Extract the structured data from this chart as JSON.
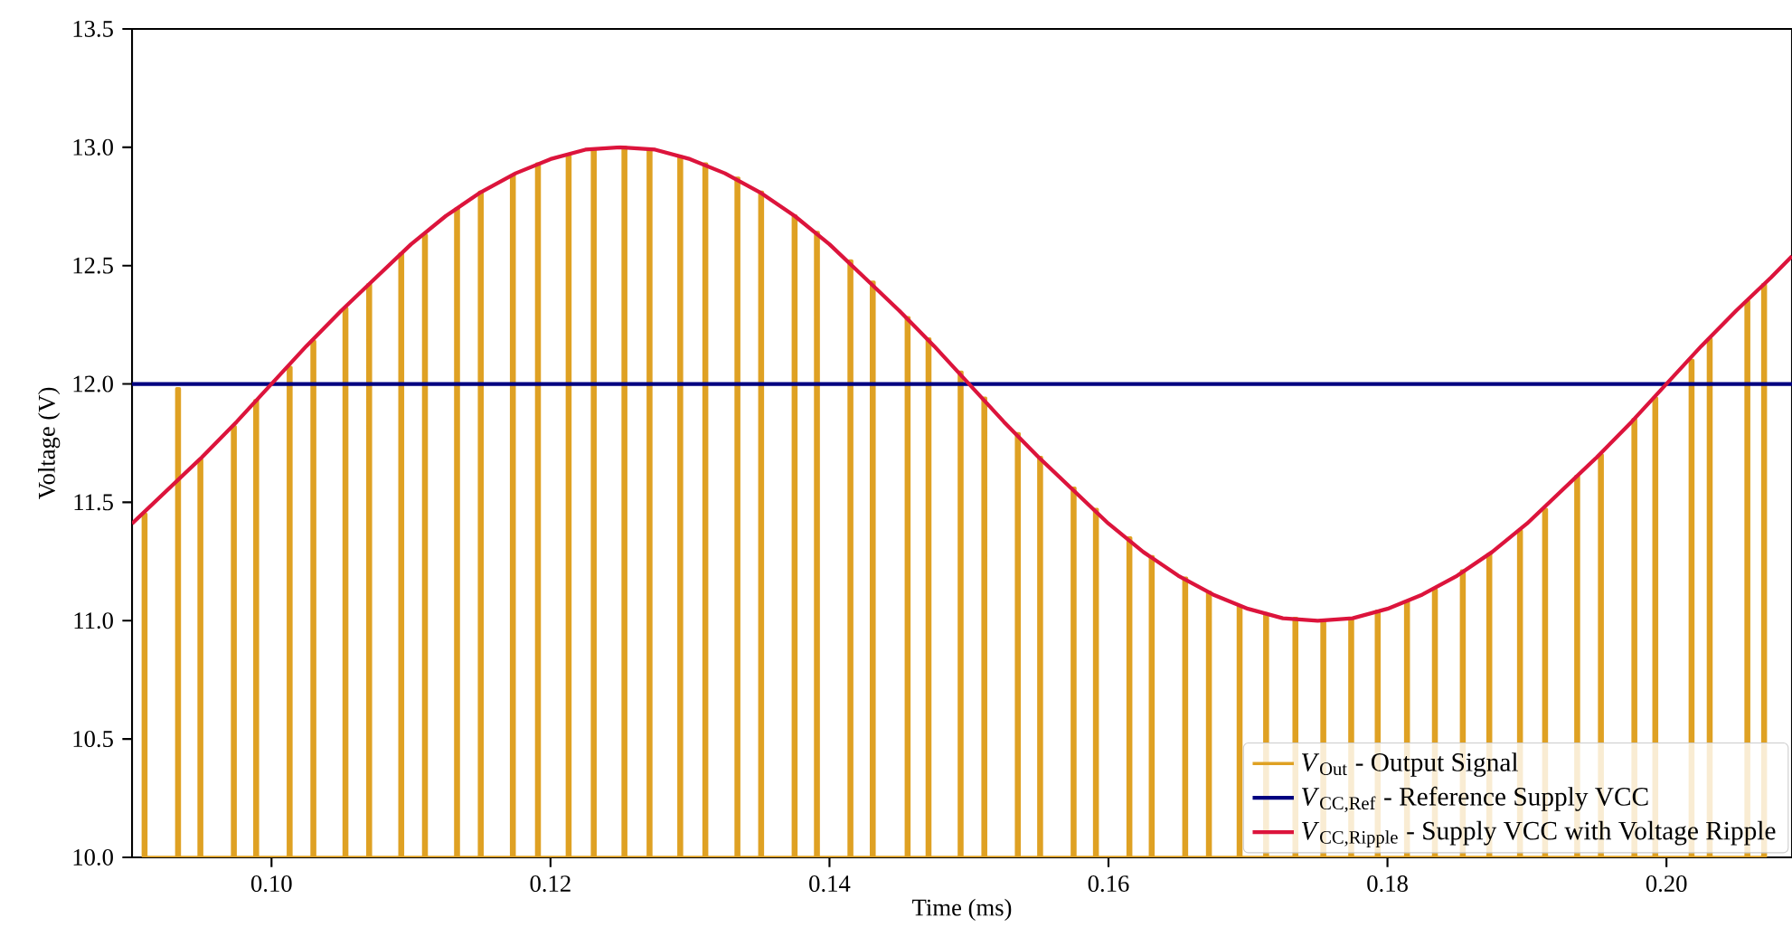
{
  "chart_data": {
    "type": "line",
    "xlabel": "Time (ms)",
    "ylabel": "Voltage (V)",
    "xlim": [
      0.09,
      0.209
    ],
    "ylim": [
      10.0,
      13.5
    ],
    "xticks": [
      {
        "value": 0.1,
        "label": "0.10"
      },
      {
        "value": 0.12,
        "label": "0.12"
      },
      {
        "value": 0.14,
        "label": "0.14"
      },
      {
        "value": 0.16,
        "label": "0.16"
      },
      {
        "value": 0.18,
        "label": "0.18"
      },
      {
        "value": 0.2,
        "label": "0.20"
      }
    ],
    "yticks": [
      {
        "value": 10.0,
        "label": "10.0"
      },
      {
        "value": 10.5,
        "label": "10.5"
      },
      {
        "value": 11.0,
        "label": "11.0"
      },
      {
        "value": 11.5,
        "label": "11.5"
      },
      {
        "value": 12.0,
        "label": "12.0"
      },
      {
        "value": 12.5,
        "label": "12.5"
      },
      {
        "value": 13.0,
        "label": "13.0"
      },
      {
        "value": 13.5,
        "label": "13.5"
      }
    ],
    "legend": "bottom right",
    "grid": false,
    "series": [
      {
        "name": "*V*$_{Out}$ - Output Signal",
        "color": "#dfa123",
        "x": [
          0.0908,
          0.0908,
          0.091,
          0.091,
          0.0932,
          0.0932,
          0.0934,
          0.0934,
          0.0948,
          0.0948,
          0.095,
          0.095,
          0.0972,
          0.0972,
          0.0974,
          0.0974,
          0.0988,
          0.0988,
          0.099,
          0.099,
          0.1012,
          0.1012,
          0.1014,
          0.1014,
          0.1029,
          0.1029,
          0.1031,
          0.1031,
          0.1052,
          0.1052,
          0.1054,
          0.1054,
          0.1069,
          0.1069,
          0.1071,
          0.1071,
          0.1092,
          0.1092,
          0.1094,
          0.1094,
          0.1109,
          0.1109,
          0.1111,
          0.1111,
          0.1132,
          0.1132,
          0.1134,
          0.1134,
          0.1149,
          0.1149,
          0.1151,
          0.1151,
          0.1172,
          0.1172,
          0.1174,
          0.1174,
          0.119,
          0.119,
          0.1192,
          0.1192,
          0.1212,
          0.1212,
          0.1214,
          0.1214,
          0.123,
          0.123,
          0.1232,
          0.1232,
          0.1252,
          0.1252,
          0.1254,
          0.1254,
          0.127,
          0.127,
          0.1272,
          0.1272,
          0.1292,
          0.1292,
          0.1294,
          0.1294,
          0.131,
          0.131,
          0.1312,
          0.1312,
          0.1333,
          0.1333,
          0.1335,
          0.1335,
          0.135,
          0.135,
          0.1352,
          0.1352,
          0.1374,
          0.1374,
          0.1376,
          0.1376,
          0.139,
          0.139,
          0.1392,
          0.1392,
          0.1414,
          0.1414,
          0.1416,
          0.1416,
          0.143,
          0.143,
          0.1432,
          0.1432,
          0.1455,
          0.1455,
          0.1457,
          0.1457,
          0.147,
          0.147,
          0.1472,
          0.1472,
          0.1493,
          0.1493,
          0.1495,
          0.1495,
          0.151,
          0.151,
          0.1512,
          0.1512,
          0.1534,
          0.1534,
          0.1536,
          0.1536,
          0.155,
          0.155,
          0.1552,
          0.1552,
          0.1574,
          0.1574,
          0.1576,
          0.1576,
          0.159,
          0.159,
          0.1592,
          0.1592,
          0.1614,
          0.1614,
          0.1616,
          0.1616,
          0.163,
          0.163,
          0.1632,
          0.1632,
          0.1654,
          0.1654,
          0.1656,
          0.1656,
          0.1671,
          0.1671,
          0.1673,
          0.1673,
          0.1693,
          0.1693,
          0.1695,
          0.1695,
          0.1712,
          0.1712,
          0.1714,
          0.1714,
          0.1733,
          0.1733,
          0.1735,
          0.1735,
          0.1753,
          0.1753,
          0.1755,
          0.1755,
          0.1773,
          0.1773,
          0.1775,
          0.1775,
          0.1792,
          0.1792,
          0.1794,
          0.1794,
          0.1813,
          0.1813,
          0.1815,
          0.1815,
          0.1833,
          0.1833,
          0.1835,
          0.1835,
          0.1853,
          0.1853,
          0.1855,
          0.1855,
          0.1872,
          0.1872,
          0.1874,
          0.1874,
          0.1894,
          0.1894,
          0.1896,
          0.1896,
          0.1912,
          0.1912,
          0.1914,
          0.1914,
          0.1935,
          0.1935,
          0.1937,
          0.1937,
          0.1952,
          0.1952,
          0.1954,
          0.1954,
          0.1976,
          0.1976,
          0.1978,
          0.1978,
          0.1991,
          0.1991,
          0.1993,
          0.1993,
          0.2017,
          0.2017,
          0.2019,
          0.2019,
          0.203,
          0.203,
          0.2032,
          0.2032,
          0.2057,
          0.2057,
          0.2059,
          0.2059,
          0.2069,
          0.2069,
          0.2071,
          0.2071
        ],
        "values": [
          10,
          11.45,
          11.45,
          10,
          10,
          11.98,
          11.98,
          10,
          10,
          11.68,
          11.68,
          10,
          10,
          11.82,
          11.82,
          10,
          10,
          11.93,
          11.93,
          10,
          10,
          12.07,
          12.07,
          10,
          10,
          12.18,
          12.18,
          10,
          10,
          12.32,
          12.32,
          10,
          10,
          12.42,
          12.42,
          10,
          10,
          12.55,
          12.55,
          10,
          10,
          12.63,
          12.63,
          10,
          10,
          12.74,
          12.74,
          10,
          10,
          12.81,
          12.81,
          10,
          10,
          12.88,
          12.88,
          10,
          10,
          12.93,
          12.93,
          10,
          10,
          12.97,
          12.97,
          10,
          10,
          12.99,
          12.99,
          10,
          10,
          13.0,
          13.0,
          10,
          10,
          12.99,
          12.99,
          10,
          10,
          12.96,
          12.96,
          10,
          10,
          12.93,
          12.93,
          10,
          10,
          12.87,
          12.87,
          10,
          10,
          12.81,
          12.81,
          10,
          10,
          12.71,
          12.71,
          10,
          10,
          12.64,
          12.64,
          10,
          10,
          12.52,
          12.52,
          10,
          10,
          12.43,
          12.43,
          10,
          10,
          12.28,
          12.28,
          10,
          10,
          12.19,
          12.19,
          10,
          10,
          12.05,
          12.05,
          10,
          10,
          11.94,
          11.94,
          10,
          10,
          11.79,
          11.79,
          10,
          10,
          11.69,
          11.69,
          10,
          10,
          11.56,
          11.56,
          10,
          10,
          11.47,
          11.47,
          10,
          10,
          11.35,
          11.35,
          10,
          10,
          11.27,
          11.27,
          10,
          10,
          11.18,
          11.18,
          10,
          10,
          11.12,
          11.12,
          10,
          10,
          11.06,
          11.06,
          10,
          10,
          11.03,
          11.03,
          10,
          10,
          11.01,
          11.01,
          10,
          10,
          11.0,
          11.0,
          10,
          10,
          11.01,
          11.01,
          10,
          10,
          11.04,
          11.04,
          10,
          10,
          11.08,
          11.08,
          10,
          10,
          11.13,
          11.13,
          10,
          10,
          11.21,
          11.21,
          10,
          10,
          11.28,
          11.28,
          10,
          10,
          11.38,
          11.38,
          10,
          10,
          11.47,
          11.47,
          10,
          10,
          11.61,
          11.61,
          10,
          10,
          11.7,
          11.7,
          10,
          10,
          11.85,
          11.85,
          10,
          10,
          11.94,
          11.94,
          10,
          10,
          12.1,
          12.1,
          10,
          10,
          12.19,
          12.19,
          10,
          10,
          12.35,
          12.35,
          10,
          10,
          12.42,
          12.42,
          10
        ]
      },
      {
        "name": "*V*$_{CC,Ref}$ - Reference Supply VCC",
        "color": "#000080",
        "x": [
          0.09,
          0.209
        ],
        "values": [
          12.0,
          12.0
        ]
      },
      {
        "name": "*V*$_{CC,Ripple}$ - Supply VCC with Voltage Ripple",
        "color": "#dc143c",
        "x": [
          0.09,
          0.0925,
          0.095,
          0.0975,
          0.1,
          0.1025,
          0.105,
          0.1075,
          0.11,
          0.1125,
          0.115,
          0.1175,
          0.12,
          0.1225,
          0.125,
          0.1275,
          0.13,
          0.1325,
          0.135,
          0.1375,
          0.14,
          0.1425,
          0.145,
          0.1475,
          0.15,
          0.1525,
          0.155,
          0.1575,
          0.16,
          0.1625,
          0.165,
          0.1675,
          0.17,
          0.1725,
          0.175,
          0.1775,
          0.18,
          0.1825,
          0.185,
          0.1875,
          0.19,
          0.1925,
          0.195,
          0.1975,
          0.2,
          0.2025,
          0.205,
          0.2075,
          0.209
        ],
        "values": [
          11.41,
          11.55,
          11.69,
          11.84,
          12.0,
          12.16,
          12.31,
          12.45,
          12.59,
          12.71,
          12.81,
          12.89,
          12.95,
          12.99,
          13.0,
          12.99,
          12.95,
          12.89,
          12.81,
          12.71,
          12.59,
          12.45,
          12.31,
          12.16,
          12.0,
          11.84,
          11.69,
          11.55,
          11.41,
          11.29,
          11.19,
          11.11,
          11.05,
          11.01,
          11.0,
          11.01,
          11.05,
          11.11,
          11.19,
          11.29,
          11.41,
          11.55,
          11.69,
          11.84,
          12.0,
          12.16,
          12.31,
          12.45,
          12.54
        ]
      }
    ]
  }
}
